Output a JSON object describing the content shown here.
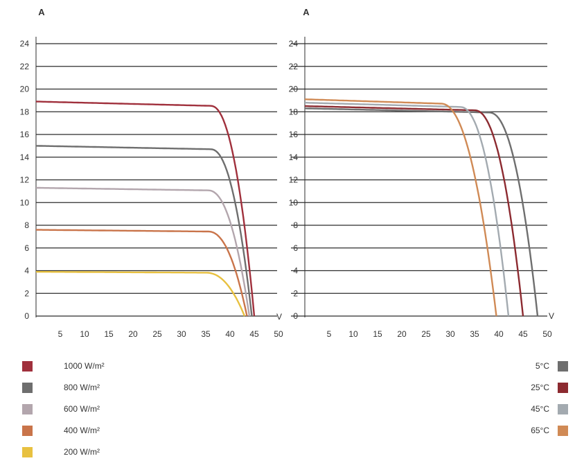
{
  "chart_data": [
    {
      "type": "line",
      "ylabel": "A",
      "xlabel": "V",
      "xlim": [
        0,
        50
      ],
      "ylim": [
        0,
        24
      ],
      "x_ticks": [
        5,
        10,
        15,
        20,
        25,
        30,
        35,
        40,
        45,
        50
      ],
      "y_ticks": [
        0,
        2,
        4,
        6,
        8,
        10,
        12,
        14,
        16,
        18,
        20,
        22,
        24
      ],
      "grid": "horizontal",
      "legend_placement": "bottom-left",
      "series": [
        {
          "name": "1000 W/m²",
          "color": "#a0303c",
          "isc": 18.9,
          "voc": 45,
          "knee": 36
        },
        {
          "name": "800 W/m²",
          "color": "#6e6e6e",
          "isc": 15.0,
          "voc": 44.5,
          "knee": 36
        },
        {
          "name": "600 W/m²",
          "color": "#b3a6ad",
          "isc": 11.3,
          "voc": 44,
          "knee": 35.5
        },
        {
          "name": "400 W/m²",
          "color": "#c9744a",
          "isc": 7.6,
          "voc": 43.5,
          "knee": 35.5
        },
        {
          "name": "200 W/m²",
          "color": "#e8c140",
          "isc": 3.9,
          "voc": 43,
          "knee": 35
        }
      ]
    },
    {
      "type": "line",
      "ylabel": "A",
      "xlabel": "V",
      "xlim": [
        0,
        50
      ],
      "ylim": [
        0,
        24
      ],
      "x_ticks": [
        5,
        10,
        15,
        20,
        25,
        30,
        35,
        40,
        45,
        50
      ],
      "y_ticks": [
        0,
        2,
        4,
        6,
        8,
        10,
        12,
        14,
        16,
        18,
        20,
        22,
        24
      ],
      "grid": "horizontal",
      "legend_placement": "bottom-right",
      "series": [
        {
          "name": "5°C",
          "color": "#6e6e6e",
          "isc": 18.3,
          "voc": 48,
          "knee": 38
        },
        {
          "name": "25°C",
          "color": "#8c2a30",
          "isc": 18.5,
          "voc": 45,
          "knee": 35
        },
        {
          "name": "45°C",
          "color": "#a3aab0",
          "isc": 18.8,
          "voc": 42,
          "knee": 32
        },
        {
          "name": "65°C",
          "color": "#d08a55",
          "isc": 19.1,
          "voc": 39.5,
          "knee": 28
        }
      ]
    }
  ]
}
